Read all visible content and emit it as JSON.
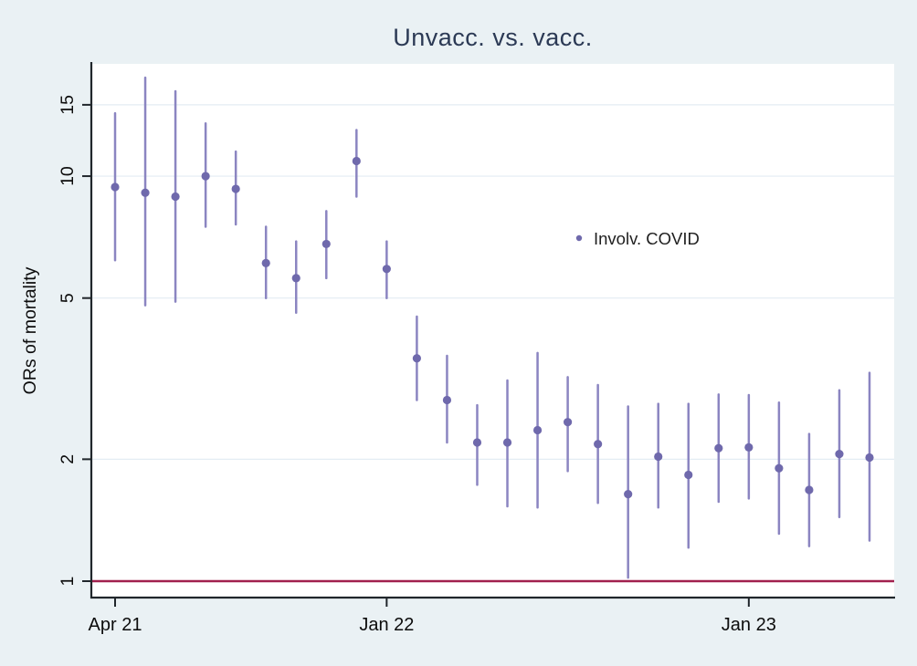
{
  "figure": {
    "title": "Unvacc. vs. vacc."
  },
  "chart_data": {
    "type": "scatter",
    "subtype": "point-estimates-with-95ci",
    "title": "Unvacc. vs. vacc.",
    "xlabel": "",
    "ylabel": "ORs of mortality",
    "y_scale": "log",
    "ylim": [
      1,
      19
    ],
    "grid": "horizontal",
    "legend": {
      "label": "Involv. COVID",
      "position": "inside-upper-right"
    },
    "reference_line": {
      "y": 1
    },
    "x_ticks": [
      {
        "index": 0,
        "label": "Apr 21"
      },
      {
        "index": 9,
        "label": "Jan 22"
      },
      {
        "index": 21,
        "label": "Jan 23"
      }
    ],
    "y_ticks": [
      {
        "value": 1,
        "label": "1"
      },
      {
        "value": 2,
        "label": "2"
      },
      {
        "value": 5,
        "label": "5"
      },
      {
        "value": 10,
        "label": "10"
      },
      {
        "value": 15,
        "label": "15"
      }
    ],
    "grid_values": [
      2,
      5,
      10,
      15
    ],
    "series": [
      {
        "name": "Involv. COVID",
        "points": [
          {
            "month": "Apr 21",
            "or": 9.4,
            "lo": 6.2,
            "hi": 14.3
          },
          {
            "month": "May 21",
            "or": 9.1,
            "lo": 4.8,
            "hi": 17.5
          },
          {
            "month": "Jun 21",
            "or": 8.9,
            "lo": 4.9,
            "hi": 16.2
          },
          {
            "month": "Jul 21",
            "or": 10.0,
            "lo": 7.5,
            "hi": 13.5
          },
          {
            "month": "Aug 21",
            "or": 9.3,
            "lo": 7.6,
            "hi": 11.5
          },
          {
            "month": "Sep 21",
            "or": 6.1,
            "lo": 5.0,
            "hi": 7.5
          },
          {
            "month": "Oct 21",
            "or": 5.6,
            "lo": 4.6,
            "hi": 6.9
          },
          {
            "month": "Nov 21",
            "or": 6.8,
            "lo": 5.6,
            "hi": 8.2
          },
          {
            "month": "Dec 21",
            "or": 10.9,
            "lo": 8.9,
            "hi": 13.0
          },
          {
            "month": "Jan 22",
            "or": 5.9,
            "lo": 5.0,
            "hi": 6.9
          },
          {
            "month": "Feb 22",
            "or": 3.55,
            "lo": 2.8,
            "hi": 4.5
          },
          {
            "month": "Mar 22",
            "or": 2.8,
            "lo": 2.2,
            "hi": 3.6
          },
          {
            "month": "Apr 22",
            "or": 2.2,
            "lo": 1.73,
            "hi": 2.72
          },
          {
            "month": "May 22",
            "or": 2.2,
            "lo": 1.53,
            "hi": 3.13
          },
          {
            "month": "Jun 22",
            "or": 2.36,
            "lo": 1.52,
            "hi": 3.66
          },
          {
            "month": "Jul 22",
            "or": 2.47,
            "lo": 1.87,
            "hi": 3.19
          },
          {
            "month": "Aug 22",
            "or": 2.18,
            "lo": 1.56,
            "hi": 3.05
          },
          {
            "month": "Sep 22",
            "or": 1.64,
            "lo": 1.02,
            "hi": 2.7
          },
          {
            "month": "Oct 22",
            "or": 2.03,
            "lo": 1.52,
            "hi": 2.74
          },
          {
            "month": "Nov 22",
            "or": 1.83,
            "lo": 1.21,
            "hi": 2.74
          },
          {
            "month": "Dec 22",
            "or": 2.13,
            "lo": 1.57,
            "hi": 2.89
          },
          {
            "month": "Jan 23",
            "or": 2.14,
            "lo": 1.6,
            "hi": 2.88
          },
          {
            "month": "Feb 23",
            "or": 1.9,
            "lo": 1.31,
            "hi": 2.76
          },
          {
            "month": "Mar 23",
            "or": 1.68,
            "lo": 1.22,
            "hi": 2.31
          },
          {
            "month": "Apr 23",
            "or": 2.06,
            "lo": 1.44,
            "hi": 2.96
          },
          {
            "month": "May 23",
            "or": 2.02,
            "lo": 1.26,
            "hi": 3.27
          }
        ]
      }
    ],
    "colors": {
      "background": "#eaf1f4",
      "plot_background": "#ffffff",
      "gridline": "#e3ecf3",
      "axis": "#20262b",
      "tick_text": "#0c0c0c",
      "title_text": "#2c3a55",
      "marker": "#6f69ac",
      "ci_line": "#8b85c1",
      "reference_line": "#a1204e",
      "legend_text": "#1f1f1f"
    }
  }
}
